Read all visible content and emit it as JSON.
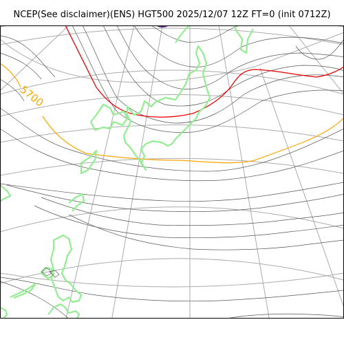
{
  "title": "NCEP(See disclaimer)(ENS) HGT500 2025/12/07 12Z FT=0 (init 0712Z)",
  "map": {
    "contour_label": "5700",
    "colors": {
      "coastline": "#90ee90",
      "contour": "#555555",
      "contour_5700": "#ffa500",
      "contour_5400": "#ee0000",
      "graticule": "#aaaaaa"
    }
  }
}
